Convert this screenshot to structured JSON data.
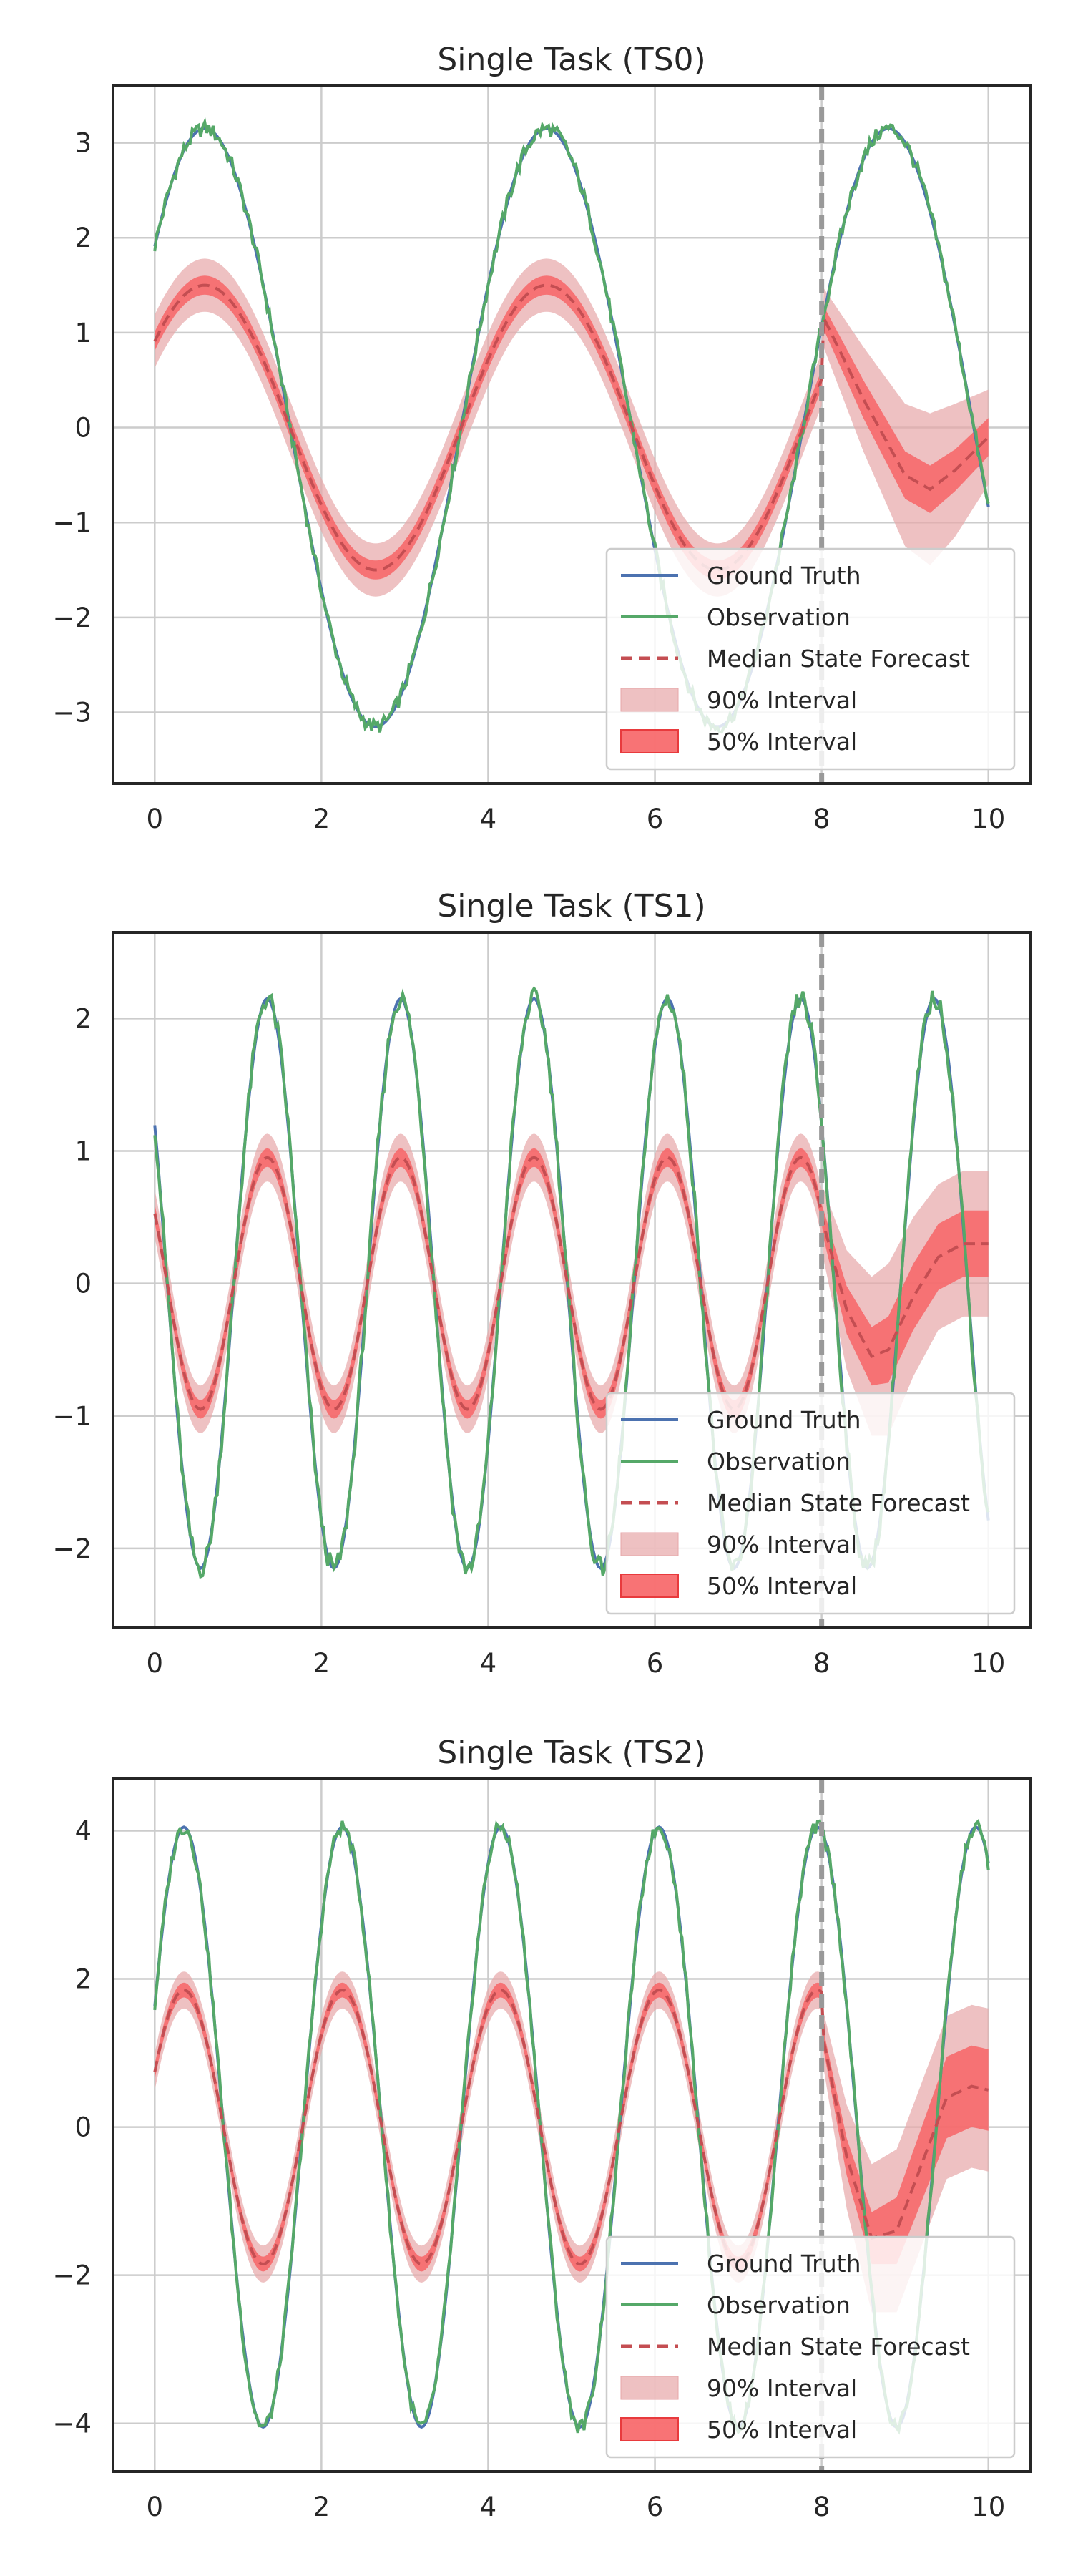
{
  "colors": {
    "ground_truth": "#4c72b0",
    "observation": "#55a868",
    "median": "#c44e52",
    "interval_90": "#e7a6a8",
    "interval_50": "#f76466",
    "forecast_line": "#999999",
    "grid": "#cccccc",
    "axes": "#262626"
  },
  "chart_data": [
    {
      "type": "line",
      "title": "Single Task (TS0)",
      "x_range": [
        0,
        10
      ],
      "xlim": [
        -0.5,
        10.5
      ],
      "ylim": [
        -3.75,
        3.6
      ],
      "x_ticks": [
        0,
        2,
        4,
        6,
        8,
        10
      ],
      "y_ticks": [
        -3,
        -2,
        -1,
        0,
        1,
        2,
        3
      ],
      "forecast_start": 8,
      "grid": true,
      "legend_position": "lower-right",
      "ground_truth": {
        "amplitude": 3.15,
        "period": 4.1,
        "phase": 0.6
      },
      "observation": {
        "amplitude": 3.15,
        "period": 4.1,
        "phase": 0.6,
        "noise": 0.08
      },
      "median_state": {
        "amplitude": 1.5,
        "period": 4.1,
        "phase": 0.6,
        "forecast_x": [
          8,
          8.5,
          9,
          9.3,
          9.6,
          10
        ],
        "forecast_y": [
          1.2,
          0.3,
          -0.5,
          -0.65,
          -0.45,
          -0.1
        ]
      },
      "interval_90": {
        "half_width": 0.28,
        "forecast_half_width": [
          0.3,
          0.55,
          0.75,
          0.8,
          0.7,
          0.5
        ]
      },
      "interval_50": {
        "half_width": 0.1,
        "forecast_half_width": [
          0.12,
          0.2,
          0.25,
          0.25,
          0.22,
          0.2
        ]
      },
      "legend": [
        "Ground Truth",
        "Observation",
        "Median State Forecast",
        "90% Interval",
        "50% Interval"
      ]
    },
    {
      "type": "line",
      "title": "Single Task (TS1)",
      "x_range": [
        0,
        10
      ],
      "xlim": [
        -0.5,
        10.5
      ],
      "ylim": [
        -2.6,
        2.65
      ],
      "x_ticks": [
        0,
        2,
        4,
        6,
        8,
        10
      ],
      "y_ticks": [
        -2,
        -1,
        0,
        1,
        2
      ],
      "forecast_start": 8,
      "grid": true,
      "legend_position": "lower-right",
      "ground_truth": {
        "amplitude": 2.15,
        "period": 1.6,
        "phase": -0.25
      },
      "observation": {
        "amplitude": 2.15,
        "period": 1.6,
        "phase": -0.25,
        "noise": 0.08
      },
      "median_state": {
        "amplitude": 0.95,
        "period": 1.6,
        "phase": -0.25,
        "forecast_x": [
          8,
          8.3,
          8.6,
          8.8,
          9.1,
          9.4,
          9.7,
          10
        ],
        "forecast_y": [
          0.5,
          -0.2,
          -0.55,
          -0.5,
          -0.1,
          0.2,
          0.3,
          0.3
        ]
      },
      "interval_90": {
        "half_width": 0.18,
        "forecast_half_width": [
          0.25,
          0.45,
          0.6,
          0.65,
          0.6,
          0.55,
          0.55,
          0.55
        ]
      },
      "interval_50": {
        "half_width": 0.07,
        "forecast_half_width": [
          0.1,
          0.18,
          0.22,
          0.25,
          0.25,
          0.25,
          0.25,
          0.25
        ]
      },
      "legend": [
        "Ground Truth",
        "Observation",
        "Median State Forecast",
        "90% Interval",
        "50% Interval"
      ]
    },
    {
      "type": "line",
      "title": "Single Task (TS2)",
      "x_range": [
        0,
        10
      ],
      "xlim": [
        -0.5,
        10.5
      ],
      "ylim": [
        -4.65,
        4.7
      ],
      "x_ticks": [
        0,
        2,
        4,
        6,
        8,
        10
      ],
      "y_ticks": [
        -4,
        -2,
        0,
        2,
        4
      ],
      "forecast_start": 8,
      "grid": true,
      "legend_position": "lower-right",
      "ground_truth": {
        "amplitude": 4.05,
        "period": 1.9,
        "phase": 0.35
      },
      "observation": {
        "amplitude": 4.05,
        "period": 1.9,
        "phase": 0.35,
        "noise": 0.1
      },
      "median_state": {
        "amplitude": 1.85,
        "period": 1.9,
        "phase": 0.35,
        "forecast_x": [
          8,
          8.3,
          8.6,
          8.9,
          9.2,
          9.5,
          9.8,
          10
        ],
        "forecast_y": [
          1.3,
          -0.4,
          -1.5,
          -1.4,
          -0.5,
          0.4,
          0.55,
          0.5
        ]
      },
      "interval_90": {
        "half_width": 0.25,
        "forecast_half_width": [
          0.35,
          0.7,
          1.0,
          1.1,
          1.1,
          1.1,
          1.1,
          1.1
        ]
      },
      "interval_50": {
        "half_width": 0.1,
        "forecast_half_width": [
          0.12,
          0.25,
          0.35,
          0.45,
          0.5,
          0.55,
          0.55,
          0.55
        ]
      },
      "legend": [
        "Ground Truth",
        "Observation",
        "Median State Forecast",
        "90% Interval",
        "50% Interval"
      ]
    }
  ]
}
